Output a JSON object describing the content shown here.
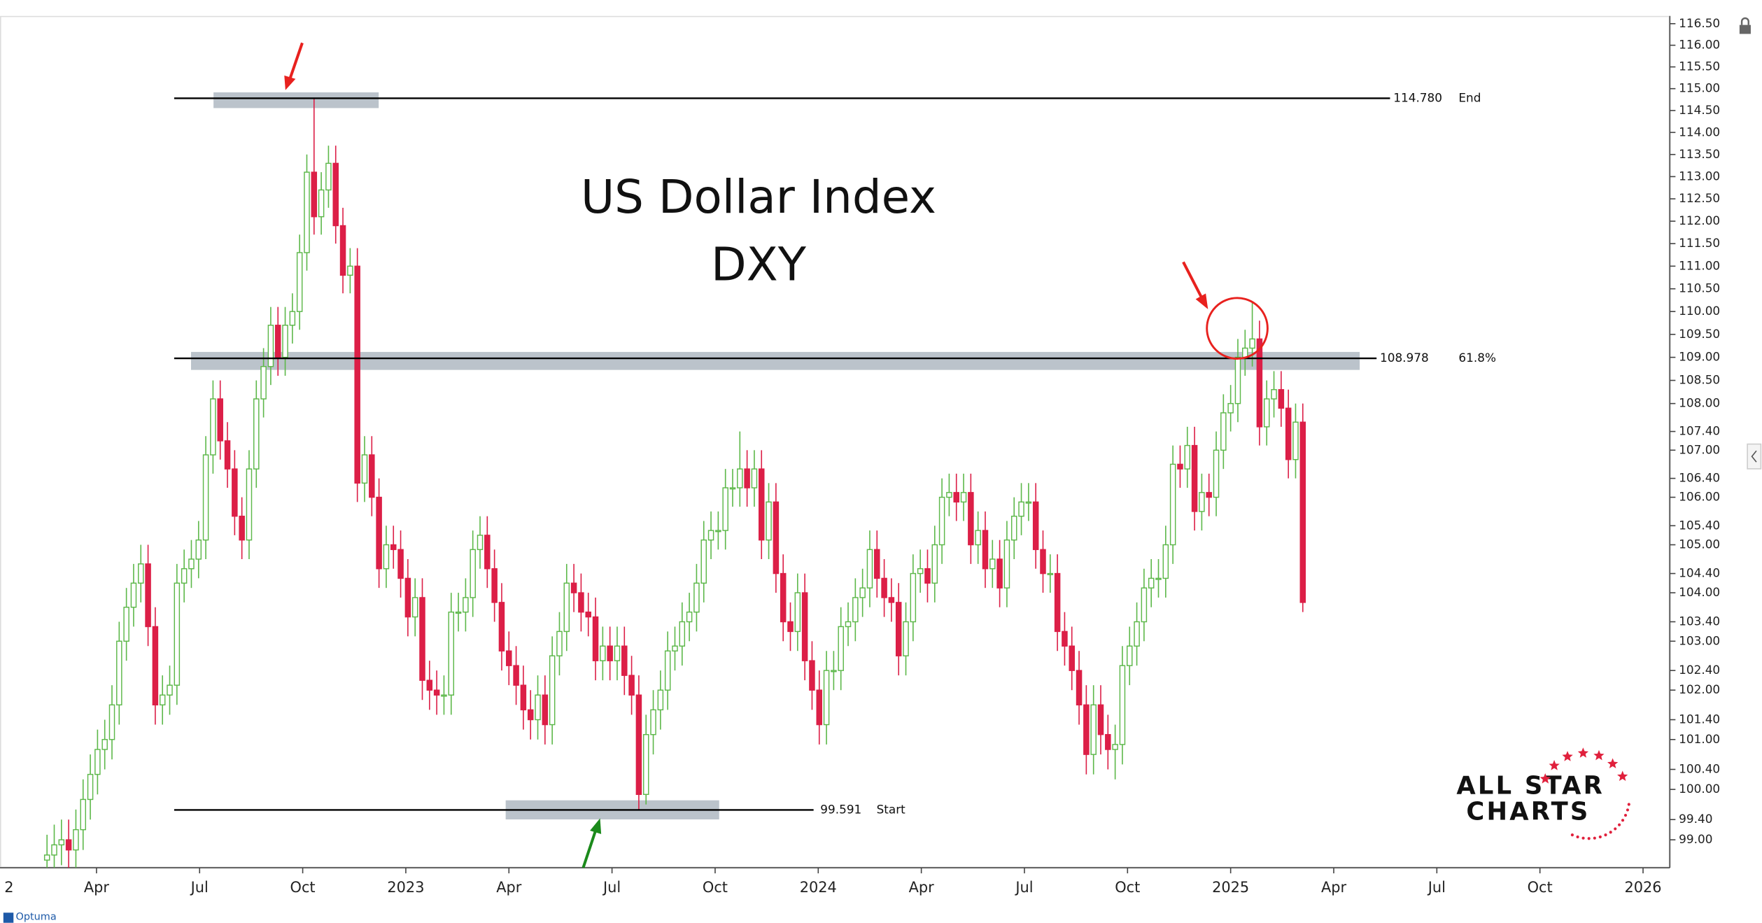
{
  "chart_data": {
    "type": "candlestick",
    "title": "US Dollar Index",
    "subtitle": "DXY",
    "log": true,
    "up_color": "#5db84a",
    "down_color": "#dc1f47",
    "xlim": [
      2022.016,
      2026.065
    ],
    "ylim": [
      98.45,
      116.68
    ],
    "xticks": [
      {
        "value": 2022,
        "label": "2"
      },
      {
        "value": 2022.25,
        "label": "Apr"
      },
      {
        "value": 2022.5,
        "label": "Jul"
      },
      {
        "value": 2022.75,
        "label": "Oct"
      },
      2023,
      {
        "value": 2023.25,
        "label": "Apr"
      },
      {
        "value": 2023.5,
        "label": "Jul"
      },
      {
        "value": 2023.75,
        "label": "Oct"
      },
      2024,
      {
        "value": 2024.25,
        "label": "Apr"
      },
      {
        "value": 2024.5,
        "label": "Jul"
      },
      {
        "value": 2024.75,
        "label": "Oct"
      },
      2025,
      {
        "value": 2025.25,
        "label": "Apr"
      },
      {
        "value": 2025.5,
        "label": "Jul"
      },
      {
        "value": 2025.75,
        "label": "Oct"
      },
      2026
    ],
    "yticks": [
      {
        "value": 116.5,
        "label": "116.50"
      },
      {
        "value": 116,
        "label": "116.00"
      },
      {
        "value": 115.5,
        "label": "115.50"
      },
      {
        "value": 115,
        "label": "115.00"
      },
      {
        "value": 114.5,
        "label": "114.50"
      },
      {
        "value": 114,
        "label": "114.00"
      },
      {
        "value": 113.5,
        "label": "113.50"
      },
      {
        "value": 113,
        "label": "113.00"
      },
      {
        "value": 112.5,
        "label": "112.50"
      },
      {
        "value": 112,
        "label": "112.00"
      },
      {
        "value": 111.5,
        "label": "111.50"
      },
      {
        "value": 111,
        "label": "111.00"
      },
      {
        "value": 110.5,
        "label": "110.50"
      },
      {
        "value": 110,
        "label": "110.00"
      },
      {
        "value": 109.5,
        "label": "109.50"
      },
      {
        "value": 109,
        "label": "109.00"
      },
      {
        "value": 108.5,
        "label": "108.50"
      },
      {
        "value": 108,
        "label": "108.00"
      },
      {
        "value": 107.4,
        "label": "107.40"
      },
      {
        "value": 107,
        "label": "107.00"
      },
      {
        "value": 106.4,
        "label": "106.40"
      },
      {
        "value": 106,
        "label": "106.00"
      },
      {
        "value": 105.4,
        "label": "105.40"
      },
      {
        "value": 105,
        "label": "105.00"
      },
      {
        "value": 104.4,
        "label": "104.40"
      },
      {
        "value": 104,
        "label": "104.00"
      },
      {
        "value": 103.4,
        "label": "103.40"
      },
      {
        "value": 103,
        "label": "103.00"
      },
      {
        "value": 102.4,
        "label": "102.40"
      },
      {
        "value": 102,
        "label": "102.00"
      },
      {
        "value": 101.4,
        "label": "101.40"
      },
      {
        "value": 101,
        "label": "101.00"
      },
      {
        "value": 100.4,
        "label": "100.40"
      },
      {
        "value": 100,
        "label": "100.00"
      },
      {
        "value": 99.4,
        "label": "99.40"
      },
      {
        "value": 99,
        "label": "99.00"
      }
    ],
    "levels": [
      {
        "value": 114.78,
        "label": "114.780",
        "name": "End"
      },
      {
        "value": 108.978,
        "label": "108.978",
        "name": "61.8%"
      },
      {
        "value": 99.591,
        "label": "99.591",
        "name": "Start"
      }
    ],
    "logo": [
      "ALL STAR",
      "CHARTS"
    ],
    "footer": "Optuma",
    "x": [
      2022.13,
      2022.1475,
      2022.165,
      2022.1825,
      2022.2,
      2022.2175,
      2022.235,
      2022.2525,
      2022.27,
      2022.2875,
      2022.305,
      2022.3225,
      2022.34,
      2022.3575,
      2022.375,
      2022.3925,
      2022.41,
      2022.4275,
      2022.445,
      2022.4625,
      2022.48,
      2022.4975,
      2022.515,
      2022.5325,
      2022.55,
      2022.5675,
      2022.585,
      2022.6025,
      2022.62,
      2022.6375,
      2022.655,
      2022.6725,
      2022.69,
      2022.7075,
      2022.725,
      2022.7425,
      2022.76,
      2022.7775,
      2022.795,
      2022.8125,
      2022.83,
      2022.8475,
      2022.865,
      2022.8825,
      2022.9,
      2022.9175,
      2022.935,
      2022.9525,
      2022.97,
      2022.9875,
      2023.005,
      2023.0225,
      2023.04,
      2023.0575,
      2023.075,
      2023.0925,
      2023.11,
      2023.1275,
      2023.145,
      2023.1625,
      2023.18,
      2023.1975,
      2023.215,
      2023.2325,
      2023.25,
      2023.2675,
      2023.285,
      2023.3025,
      2023.32,
      2023.3375,
      2023.355,
      2023.3725,
      2023.39,
      2023.4075,
      2023.425,
      2023.4425,
      2023.46,
      2023.4775,
      2023.495,
      2023.5125,
      2023.53,
      2023.5475,
      2023.565,
      2023.5825,
      2023.6,
      2023.6175,
      2023.635,
      2023.6525,
      2023.67,
      2023.6875,
      2023.705,
      2023.7225,
      2023.74,
      2023.7575,
      2023.775,
      2023.7925,
      2023.81,
      2023.8275,
      2023.845,
      2023.8625,
      2023.88,
      2023.8975,
      2023.915,
      2023.9325,
      2023.95,
      2023.9675,
      2023.985,
      2024.0025,
      2024.02,
      2024.0375,
      2024.055,
      2024.0725,
      2024.09,
      2024.1075,
      2024.125,
      2024.1425,
      2024.16,
      2024.1775,
      2024.195,
      2024.2125,
      2024.23,
      2024.2475,
      2024.265,
      2024.2825,
      2024.3,
      2024.3175,
      2024.335,
      2024.3525,
      2024.37,
      2024.3875,
      2024.405,
      2024.4225,
      2024.44,
      2024.4575,
      2024.475,
      2024.4925,
      2024.51,
      2024.5275,
      2024.545,
      2024.5625,
      2024.58,
      2024.5975,
      2024.615,
      2024.6325,
      2024.65,
      2024.6675,
      2024.685,
      2024.7025,
      2024.72,
      2024.7375,
      2024.755,
      2024.7725,
      2024.79,
      2024.8075,
      2024.825,
      2024.8425,
      2024.86,
      2024.8775,
      2024.895,
      2024.9125,
      2024.93,
      2024.9475,
      2024.965,
      2024.9825,
      2025.0,
      2025.0175,
      2025.035,
      2025.0525,
      2025.07,
      2025.0875,
      2025.105,
      2025.1225,
      2025.14,
      2025.1575,
      2025.175
    ],
    "open": [
      98.6,
      98.7,
      98.9,
      99.0,
      98.8,
      99.2,
      99.8,
      100.3,
      100.8,
      101.0,
      101.7,
      103.0,
      103.7,
      104.2,
      104.6,
      103.3,
      101.7,
      101.9,
      102.1,
      104.2,
      104.5,
      104.7,
      105.1,
      106.9,
      108.1,
      107.2,
      106.6,
      105.6,
      105.1,
      106.6,
      108.1,
      108.8,
      109.7,
      109.0,
      109.7,
      110.0,
      111.3,
      113.1,
      112.1,
      112.7,
      113.3,
      111.9,
      110.8,
      111.0,
      106.3,
      106.9,
      106.0,
      104.5,
      105.0,
      104.9,
      104.3,
      103.5,
      103.9,
      102.2,
      102.0,
      101.9,
      101.9,
      103.6,
      103.6,
      103.9,
      104.9,
      105.2,
      104.5,
      103.8,
      102.8,
      102.5,
      102.1,
      101.6,
      101.4,
      101.9,
      101.3,
      102.7,
      103.2,
      104.2,
      104.0,
      103.6,
      103.5,
      102.6,
      102.9,
      102.6,
      102.9,
      102.3,
      101.9,
      99.9,
      101.1,
      101.6,
      102.0,
      102.8,
      102.9,
      103.4,
      103.6,
      104.2,
      105.1,
      105.3,
      105.3,
      106.2,
      106.2,
      106.6,
      106.2,
      106.6,
      105.1,
      105.9,
      104.4,
      103.4,
      103.2,
      104.0,
      102.6,
      102.0,
      101.3,
      102.4,
      102.4,
      103.3,
      103.4,
      103.9,
      104.1,
      104.9,
      104.3,
      103.9,
      103.8,
      102.7,
      103.4,
      104.4,
      104.5,
      104.2,
      105.0,
      106.0,
      106.1,
      105.9,
      106.1,
      105.0,
      105.3,
      104.5,
      104.7,
      104.1,
      105.1,
      105.6,
      105.9,
      105.9,
      104.9,
      104.4,
      104.4,
      103.2,
      102.9,
      102.4,
      101.7,
      100.7,
      101.7,
      101.1,
      100.8,
      100.9,
      102.5,
      102.9,
      103.4,
      104.1,
      104.3,
      104.3,
      105.0,
      106.7,
      106.6,
      107.1,
      105.7,
      106.1,
      106.0,
      107.0,
      107.8,
      108.0,
      109.0,
      109.2,
      109.4,
      107.5,
      108.1,
      108.3,
      107.9,
      106.8,
      107.6
    ],
    "high": [
      99.1,
      99.3,
      99.4,
      99.4,
      99.6,
      100.2,
      100.7,
      101.2,
      101.4,
      102.1,
      103.4,
      104.1,
      104.6,
      105.0,
      105.0,
      103.7,
      102.3,
      102.5,
      104.6,
      104.9,
      105.1,
      105.5,
      107.3,
      108.5,
      108.5,
      107.6,
      107.0,
      106.0,
      107.0,
      108.5,
      109.2,
      110.1,
      110.1,
      110.1,
      110.4,
      111.7,
      113.5,
      114.78,
      113.1,
      113.7,
      113.7,
      112.3,
      111.4,
      111.4,
      107.3,
      107.3,
      106.4,
      105.4,
      105.4,
      105.3,
      104.7,
      104.3,
      104.3,
      102.6,
      102.4,
      102.3,
      104.0,
      104.0,
      104.3,
      105.3,
      105.6,
      105.6,
      104.9,
      104.2,
      103.2,
      102.9,
      102.5,
      102.0,
      102.3,
      102.3,
      103.1,
      103.6,
      104.6,
      104.6,
      104.4,
      104.0,
      103.9,
      103.3,
      103.3,
      103.3,
      103.3,
      102.7,
      102.3,
      101.5,
      102.0,
      102.4,
      103.2,
      103.3,
      103.8,
      104.0,
      104.6,
      105.5,
      105.7,
      105.7,
      106.6,
      106.6,
      107.4,
      107.0,
      107.0,
      107.0,
      106.3,
      106.3,
      104.8,
      103.8,
      104.4,
      104.4,
      103.0,
      102.4,
      102.8,
      102.8,
      103.7,
      103.8,
      104.3,
      104.5,
      105.3,
      105.3,
      104.7,
      104.3,
      104.2,
      103.8,
      104.8,
      104.9,
      104.9,
      105.4,
      106.4,
      106.5,
      106.5,
      106.5,
      106.5,
      105.7,
      105.7,
      105.1,
      105.1,
      105.5,
      106.0,
      106.3,
      106.3,
      106.3,
      105.3,
      104.8,
      104.8,
      103.6,
      103.3,
      102.8,
      102.1,
      102.1,
      102.1,
      101.5,
      101.3,
      102.9,
      103.3,
      103.8,
      104.5,
      104.7,
      104.7,
      105.4,
      107.1,
      107.1,
      107.5,
      107.5,
      106.5,
      106.5,
      107.4,
      108.2,
      108.4,
      109.4,
      109.6,
      110.2,
      109.8,
      108.5,
      108.7,
      108.7,
      108.3,
      108.0,
      108.0
    ],
    "low": [
      98.2,
      98.3,
      98.5,
      98.4,
      98.4,
      98.8,
      99.4,
      99.9,
      100.4,
      100.6,
      101.3,
      102.6,
      103.3,
      103.8,
      102.9,
      101.3,
      101.3,
      101.5,
      101.7,
      103.8,
      104.1,
      104.3,
      104.7,
      106.5,
      106.8,
      106.2,
      105.2,
      104.7,
      104.7,
      106.2,
      107.7,
      108.4,
      108.6,
      108.6,
      109.3,
      109.6,
      110.9,
      111.7,
      111.7,
      112.3,
      111.5,
      110.4,
      110.4,
      105.9,
      105.9,
      105.6,
      104.1,
      104.1,
      104.5,
      103.9,
      103.1,
      103.1,
      101.8,
      101.6,
      101.5,
      101.5,
      101.5,
      103.2,
      103.2,
      103.5,
      104.5,
      104.1,
      103.4,
      102.4,
      102.1,
      101.7,
      101.2,
      101.0,
      101.0,
      100.9,
      100.9,
      102.3,
      102.8,
      103.6,
      103.2,
      103.1,
      102.2,
      102.2,
      102.2,
      102.2,
      101.9,
      101.5,
      99.591,
      99.7,
      100.7,
      101.2,
      101.6,
      102.4,
      102.5,
      103.0,
      103.2,
      103.8,
      104.7,
      104.9,
      104.9,
      105.8,
      105.8,
      105.8,
      105.8,
      104.7,
      104.7,
      104.0,
      103.0,
      102.8,
      102.8,
      102.2,
      101.6,
      100.9,
      100.9,
      102.0,
      102.0,
      102.9,
      103.0,
      103.5,
      103.7,
      103.9,
      103.5,
      103.4,
      102.3,
      102.3,
      103.0,
      104.0,
      103.8,
      103.8,
      104.6,
      105.6,
      105.5,
      105.5,
      104.6,
      104.6,
      104.1,
      104.1,
      103.7,
      103.7,
      104.7,
      105.2,
      105.5,
      104.5,
      104.0,
      104.0,
      102.8,
      102.5,
      102.0,
      101.3,
      100.3,
      100.3,
      100.7,
      100.4,
      100.2,
      100.5,
      102.1,
      102.5,
      103.0,
      103.7,
      103.9,
      103.9,
      104.6,
      106.2,
      106.2,
      105.3,
      105.3,
      105.6,
      105.6,
      106.6,
      107.4,
      107.6,
      108.6,
      108.8,
      107.1,
      107.1,
      107.7,
      107.5,
      106.4,
      106.4,
      103.6
    ],
    "close": [
      98.7,
      98.9,
      99.0,
      98.8,
      99.2,
      99.8,
      100.3,
      100.8,
      101.0,
      101.7,
      103.0,
      103.7,
      104.2,
      104.6,
      103.3,
      101.7,
      101.9,
      102.1,
      104.2,
      104.5,
      104.7,
      105.1,
      106.9,
      108.1,
      107.2,
      106.6,
      105.6,
      105.1,
      106.6,
      108.1,
      108.8,
      109.7,
      109.0,
      109.7,
      110.0,
      111.3,
      113.1,
      112.1,
      112.7,
      113.3,
      111.9,
      110.8,
      111.0,
      106.3,
      106.9,
      106.0,
      104.5,
      105.0,
      104.9,
      104.3,
      103.5,
      103.9,
      102.2,
      102.0,
      101.9,
      101.9,
      103.6,
      103.6,
      103.9,
      104.9,
      105.2,
      104.5,
      103.8,
      102.8,
      102.5,
      102.1,
      101.6,
      101.4,
      101.9,
      101.3,
      102.7,
      103.2,
      104.2,
      104.0,
      103.6,
      103.5,
      102.6,
      102.9,
      102.6,
      102.9,
      102.3,
      101.9,
      99.9,
      101.1,
      101.6,
      102.0,
      102.8,
      102.9,
      103.4,
      103.6,
      104.2,
      105.1,
      105.3,
      105.3,
      106.2,
      106.2,
      106.6,
      106.2,
      106.6,
      105.1,
      105.9,
      104.4,
      103.4,
      103.2,
      104.0,
      102.6,
      102.0,
      101.3,
      102.4,
      102.4,
      103.3,
      103.4,
      103.9,
      104.1,
      104.9,
      104.3,
      103.9,
      103.8,
      102.7,
      103.4,
      104.4,
      104.5,
      104.2,
      105.0,
      106.0,
      106.1,
      105.9,
      106.1,
      105.0,
      105.3,
      104.5,
      104.7,
      104.1,
      105.1,
      105.6,
      105.9,
      105.9,
      104.9,
      104.4,
      104.4,
      103.2,
      102.9,
      102.4,
      101.7,
      100.7,
      101.7,
      101.1,
      100.8,
      100.9,
      102.5,
      102.9,
      103.4,
      104.1,
      104.3,
      104.3,
      105.0,
      106.7,
      106.6,
      107.1,
      105.7,
      106.1,
      106.0,
      107.0,
      107.8,
      108.0,
      109.0,
      109.2,
      109.4,
      107.5,
      108.1,
      108.3,
      107.9,
      106.8,
      107.6,
      103.8
    ]
  }
}
